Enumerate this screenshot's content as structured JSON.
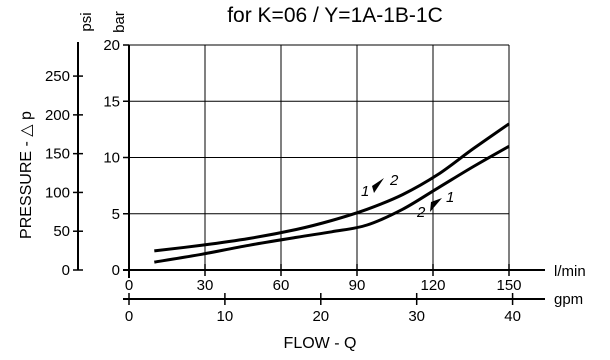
{
  "chart_data": {
    "type": "line",
    "title": "for K=06 / Y=1A-1B-1C",
    "xlabel": "FLOW - Q",
    "ylabel": "PRESSURE - △ p",
    "x_unit_primary": "l/min",
    "x_unit_secondary": "gpm",
    "y_unit_primary": "bar",
    "y_unit_secondary": "psi",
    "xlim": [
      0,
      150
    ],
    "ylim": [
      0,
      20
    ],
    "x_ticks_lmin": [
      "0",
      "30",
      "60",
      "90",
      "120",
      "150"
    ],
    "x_ticks_gpm": [
      "0",
      "10",
      "20",
      "30",
      "40"
    ],
    "y_ticks_bar": [
      "0",
      "5",
      "10",
      "15",
      "20"
    ],
    "y_ticks_psi": [
      "0",
      "50",
      "100",
      "150",
      "200",
      "250"
    ],
    "grid": true,
    "series": [
      {
        "name": "1 → 2",
        "points": [
          [
            0,
            1.7
          ],
          [
            20,
            2.2
          ],
          [
            40,
            2.8
          ],
          [
            60,
            3.6
          ],
          [
            75,
            4.4
          ],
          [
            90,
            5.4
          ],
          [
            105,
            6.7
          ],
          [
            120,
            8.5
          ],
          [
            135,
            10.8
          ],
          [
            150,
            13.0
          ]
        ],
        "label_1": "1",
        "label_2": "2"
      },
      {
        "name": "2 → 1",
        "points": [
          [
            0,
            0.7
          ],
          [
            20,
            1.4
          ],
          [
            40,
            2.2
          ],
          [
            60,
            2.9
          ],
          [
            75,
            3.4
          ],
          [
            90,
            4.0
          ],
          [
            105,
            5.4
          ],
          [
            120,
            7.3
          ],
          [
            135,
            9.2
          ],
          [
            150,
            11.0
          ]
        ],
        "label_1": "2",
        "label_2": "1"
      }
    ]
  }
}
